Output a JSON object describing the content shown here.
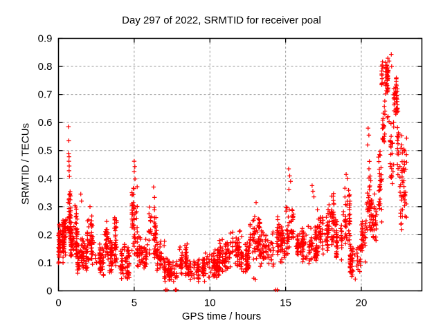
{
  "chart_data": {
    "type": "scatter",
    "title": "Day 297 of 2022, SRMTID for receiver poal",
    "xlabel": "GPS time / hours",
    "ylabel": "SRMTID / TECUs",
    "xlim": [
      0,
      24
    ],
    "ylim": [
      0,
      0.9
    ],
    "xtick_values": [
      0,
      5,
      10,
      15,
      20
    ],
    "xtick_labels": [
      "0",
      "5",
      "10",
      "15",
      "20"
    ],
    "ytick_values": [
      0,
      0.1,
      0.2,
      0.3,
      0.4,
      0.5,
      0.6,
      0.7,
      0.8,
      0.9
    ],
    "ytick_labels": [
      "0",
      "0.1",
      "0.2",
      "0.3",
      "0.4",
      "0.5",
      "0.6",
      "0.7",
      "0.8",
      "0.9"
    ],
    "grid": true,
    "legend": "none",
    "marker": "plus",
    "marker_color": "#ff0000",
    "grid_color": "#9a9a9a",
    "border_color": "#000000",
    "background_color": "#ffffff",
    "point_bands_format": "[t_start_hours, t_end_hours, n_points, y_min_TECU, y_max_TECU] dense scatter cloud envelope read from plot",
    "point_bands": [
      [
        0.0,
        0.3,
        60,
        0.08,
        0.27
      ],
      [
        0.3,
        0.55,
        40,
        0.12,
        0.3
      ],
      [
        0.55,
        0.8,
        50,
        0.15,
        0.4
      ],
      [
        0.8,
        1.0,
        35,
        0.12,
        0.26
      ],
      [
        1.0,
        1.25,
        40,
        0.1,
        0.33
      ],
      [
        1.25,
        1.9,
        70,
        0.06,
        0.2
      ],
      [
        1.9,
        2.35,
        50,
        0.09,
        0.29
      ],
      [
        2.35,
        3.0,
        60,
        0.05,
        0.18
      ],
      [
        3.0,
        3.3,
        35,
        0.07,
        0.3
      ],
      [
        3.3,
        3.7,
        40,
        0.06,
        0.2
      ],
      [
        3.7,
        4.05,
        35,
        0.08,
        0.28
      ],
      [
        4.05,
        4.85,
        70,
        0.04,
        0.17
      ],
      [
        4.85,
        5.2,
        50,
        0.12,
        0.42
      ],
      [
        5.2,
        5.95,
        60,
        0.07,
        0.2
      ],
      [
        5.95,
        6.5,
        50,
        0.09,
        0.35
      ],
      [
        6.5,
        7.0,
        45,
        0.06,
        0.2
      ],
      [
        7.0,
        7.95,
        70,
        0.03,
        0.12
      ],
      [
        7.95,
        8.5,
        50,
        0.05,
        0.17
      ],
      [
        8.5,
        9.7,
        80,
        0.03,
        0.13
      ],
      [
        9.7,
        10.6,
        70,
        0.04,
        0.16
      ],
      [
        10.6,
        11.3,
        60,
        0.05,
        0.2
      ],
      [
        11.3,
        12.1,
        65,
        0.07,
        0.22
      ],
      [
        12.1,
        12.6,
        45,
        0.05,
        0.18
      ],
      [
        12.6,
        13.3,
        60,
        0.1,
        0.3
      ],
      [
        13.3,
        14.2,
        65,
        0.08,
        0.24
      ],
      [
        14.2,
        15.0,
        65,
        0.09,
        0.27
      ],
      [
        15.0,
        15.55,
        45,
        0.12,
        0.33
      ],
      [
        15.55,
        16.4,
        70,
        0.1,
        0.24
      ],
      [
        16.4,
        17.1,
        60,
        0.08,
        0.24
      ],
      [
        17.1,
        17.8,
        60,
        0.12,
        0.3
      ],
      [
        17.8,
        18.35,
        50,
        0.15,
        0.37
      ],
      [
        18.35,
        18.8,
        40,
        0.1,
        0.26
      ],
      [
        18.8,
        19.25,
        45,
        0.15,
        0.41
      ],
      [
        19.25,
        20.0,
        60,
        0.04,
        0.18
      ],
      [
        20.0,
        20.35,
        35,
        0.1,
        0.3
      ],
      [
        20.35,
        20.65,
        35,
        0.2,
        0.47
      ],
      [
        20.65,
        21.05,
        40,
        0.17,
        0.35
      ],
      [
        21.05,
        21.35,
        30,
        0.22,
        0.52
      ],
      [
        21.35,
        21.9,
        50,
        0.7,
        0.845
      ],
      [
        21.4,
        21.9,
        22,
        0.52,
        0.7
      ],
      [
        21.9,
        22.15,
        25,
        0.35,
        0.62
      ],
      [
        22.15,
        22.5,
        40,
        0.6,
        0.77
      ],
      [
        22.2,
        22.55,
        16,
        0.4,
        0.6
      ],
      [
        22.55,
        23.0,
        55,
        0.2,
        0.58
      ]
    ],
    "outlier_points_format": "[t_hours, y_TECU] isolated high/low points read from plot",
    "outlier_points": [
      [
        0.66,
        0.585
      ],
      [
        0.68,
        0.535
      ],
      [
        0.67,
        0.49
      ],
      [
        0.7,
        0.478
      ],
      [
        0.69,
        0.462
      ],
      [
        0.71,
        0.445
      ],
      [
        0.7,
        0.428
      ],
      [
        0.72,
        0.408
      ],
      [
        1.47,
        0.345
      ],
      [
        1.52,
        0.32
      ],
      [
        2.08,
        0.3
      ],
      [
        5.0,
        0.462
      ],
      [
        5.04,
        0.443
      ],
      [
        5.0,
        0.425
      ],
      [
        6.28,
        0.37
      ],
      [
        12.9,
        0.045
      ],
      [
        13.0,
        0.04
      ],
      [
        13.05,
        0.315
      ],
      [
        15.2,
        0.435
      ],
      [
        15.27,
        0.41
      ],
      [
        15.33,
        0.39
      ],
      [
        15.22,
        0.362
      ],
      [
        16.75,
        0.375
      ],
      [
        16.8,
        0.355
      ],
      [
        16.87,
        0.335
      ],
      [
        19.0,
        0.415
      ],
      [
        19.08,
        0.4
      ],
      [
        19.6,
        0.042
      ],
      [
        20.42,
        0.52
      ],
      [
        20.45,
        0.58
      ],
      [
        20.5,
        0.555
      ],
      [
        21.98,
        0.843
      ],
      [
        22.0,
        0.8
      ]
    ],
    "zero_value_times": [
      7.08,
      7.16,
      7.72,
      7.8,
      14.35,
      14.45
    ]
  }
}
